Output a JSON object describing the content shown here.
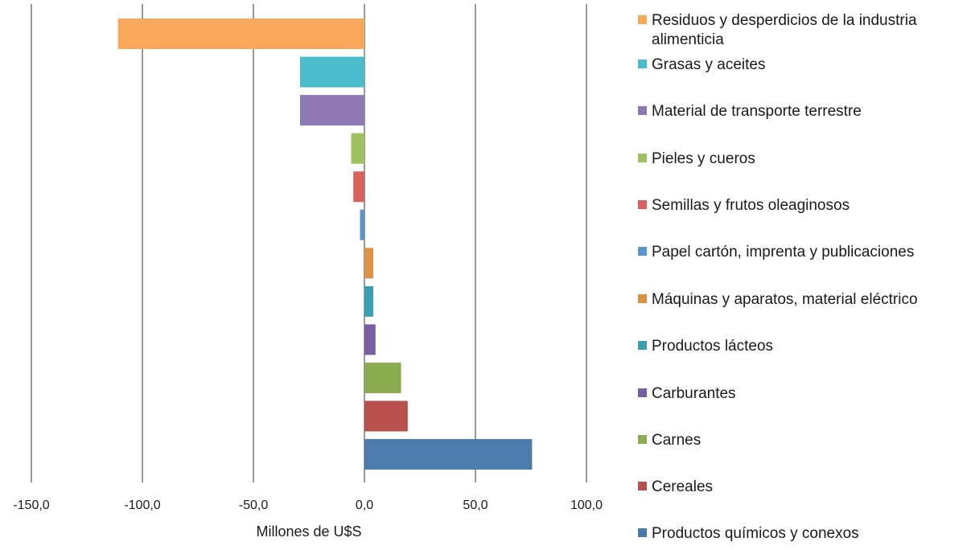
{
  "chart_data": {
    "type": "bar",
    "orientation": "horizontal",
    "xlabel": "Millones de U$S",
    "xlim": [
      -150,
      100
    ],
    "xticks": [
      -150,
      -100,
      -50,
      0,
      50,
      100
    ],
    "xtick_labels": [
      "-150,0",
      "-100,0",
      "-50,0",
      "0,0",
      "50,0",
      "100,0"
    ],
    "grid": "vertical",
    "legend_position": "right",
    "categories": [
      "Residuos y desperdicios de la industria alimenticia",
      "Grasas y aceites",
      "Material de transporte terrestre",
      "Pieles y cueros",
      "Semillas y frutos oleaginosos",
      "Papel cartón, imprenta y publicaciones",
      "Máquinas y aparatos, material eléctrico",
      "Productos lácteos",
      "Carburantes",
      "Carnes",
      "Cereales",
      "Productos químicos y conexos"
    ],
    "values": [
      -111,
      -29,
      -29,
      -6,
      -5,
      -2,
      4,
      4,
      5,
      16.5,
      19.5,
      75.5
    ],
    "colors": [
      "#f9a75b",
      "#4bbccc",
      "#8e79b4",
      "#9fc261",
      "#d9615e",
      "#5b94cf",
      "#de9043",
      "#3b9eaf",
      "#7a5ea3",
      "#8aab50",
      "#b8504c",
      "#4a7bab"
    ]
  }
}
